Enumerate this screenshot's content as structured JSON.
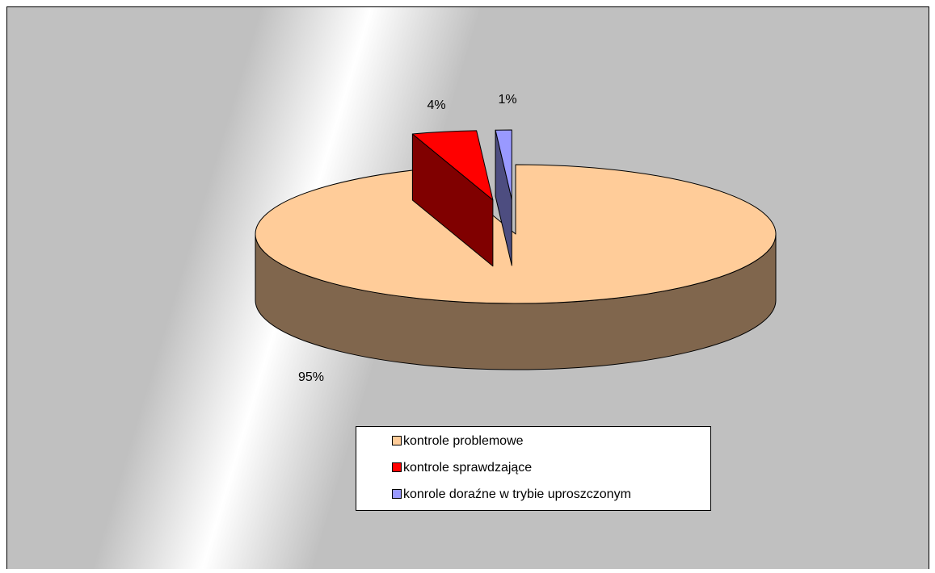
{
  "chart_data": {
    "type": "pie3d",
    "categories": [
      "kontrole problemowe",
      "kontrole sprawdzające",
      "konrole doraźne w trybie uproszczonym"
    ],
    "values": [
      95,
      4,
      1
    ],
    "value_labels": [
      "95%",
      "4%",
      "1%"
    ],
    "colors": [
      "#ffcc99",
      "#ff0000",
      "#9999ff"
    ],
    "legend": "bottom"
  }
}
